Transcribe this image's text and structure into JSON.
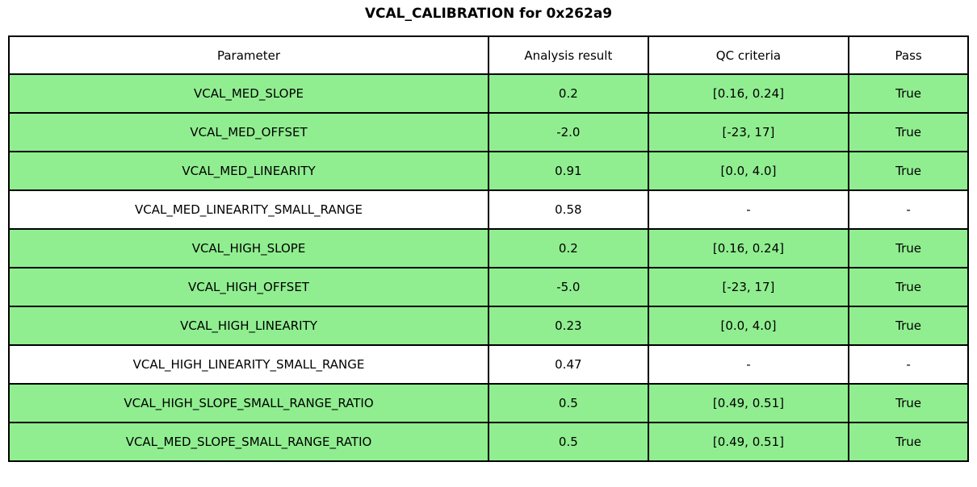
{
  "title": "VCAL_CALIBRATION for 0x262a9",
  "colors": {
    "pass_row_green": "#90EE90",
    "border": "#000000",
    "background": "#FFFFFF",
    "text": "#000000"
  },
  "chart_data": {
    "type": "table",
    "title": "VCAL_CALIBRATION for 0x262a9",
    "columns": [
      "Parameter",
      "Analysis result",
      "QC criteria",
      "Pass"
    ],
    "rows": [
      {
        "parameter": "VCAL_MED_SLOPE",
        "analysis_result": "0.2",
        "qc_criteria": "[0.16, 0.24]",
        "pass": "True",
        "highlighted": true
      },
      {
        "parameter": "VCAL_MED_OFFSET",
        "analysis_result": "-2.0",
        "qc_criteria": "[-23, 17]",
        "pass": "True",
        "highlighted": true
      },
      {
        "parameter": "VCAL_MED_LINEARITY",
        "analysis_result": "0.91",
        "qc_criteria": "[0.0, 4.0]",
        "pass": "True",
        "highlighted": true
      },
      {
        "parameter": "VCAL_MED_LINEARITY_SMALL_RANGE",
        "analysis_result": "0.58",
        "qc_criteria": "-",
        "pass": "-",
        "highlighted": false
      },
      {
        "parameter": "VCAL_HIGH_SLOPE",
        "analysis_result": "0.2",
        "qc_criteria": "[0.16, 0.24]",
        "pass": "True",
        "highlighted": true
      },
      {
        "parameter": "VCAL_HIGH_OFFSET",
        "analysis_result": "-5.0",
        "qc_criteria": "[-23, 17]",
        "pass": "True",
        "highlighted": true
      },
      {
        "parameter": "VCAL_HIGH_LINEARITY",
        "analysis_result": "0.23",
        "qc_criteria": "[0.0, 4.0]",
        "pass": "True",
        "highlighted": true
      },
      {
        "parameter": "VCAL_HIGH_LINEARITY_SMALL_RANGE",
        "analysis_result": "0.47",
        "qc_criteria": "-",
        "pass": "-",
        "highlighted": false
      },
      {
        "parameter": "VCAL_HIGH_SLOPE_SMALL_RANGE_RATIO",
        "analysis_result": "0.5",
        "qc_criteria": "[0.49, 0.51]",
        "pass": "True",
        "highlighted": true
      },
      {
        "parameter": "VCAL_MED_SLOPE_SMALL_RANGE_RATIO",
        "analysis_result": "0.5",
        "qc_criteria": "[0.49, 0.51]",
        "pass": "True",
        "highlighted": true
      }
    ]
  }
}
